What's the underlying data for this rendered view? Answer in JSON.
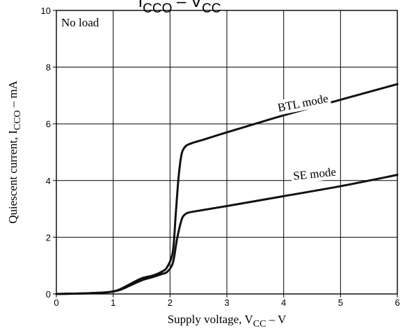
{
  "chart_data": {
    "type": "line",
    "title_parts": [
      {
        "base": "I",
        "sub": "CCO"
      },
      {
        "base": " – V",
        "sub": "CC"
      }
    ],
    "xlabel": {
      "prefix": "Supply voltage, V",
      "sub": "CC",
      "suffix": " – V"
    },
    "ylabel": {
      "prefix": "Quiescent current, I",
      "sub": "CCO",
      "suffix": " – mA"
    },
    "xlim": [
      0,
      6
    ],
    "ylim": [
      0,
      10
    ],
    "xticks": [
      0,
      1,
      2,
      3,
      4,
      5,
      6
    ],
    "yticks": [
      0,
      2,
      4,
      6,
      8,
      10
    ],
    "grid": true,
    "annotations": [
      {
        "text": "No load"
      }
    ],
    "series": [
      {
        "name": "BTL mode",
        "label_anchor": {
          "x": 4.35,
          "y": 6.6
        },
        "label_rotation_deg": -11,
        "x": [
          0,
          0.5,
          0.9,
          1.1,
          1.3,
          1.5,
          1.7,
          1.85,
          1.95,
          2.05,
          2.1,
          2.15,
          2.2,
          2.25,
          2.3,
          2.4,
          2.6,
          3.0,
          4.0,
          5.0,
          6.0
        ],
        "y": [
          0,
          0.02,
          0.06,
          0.15,
          0.35,
          0.55,
          0.65,
          0.78,
          0.95,
          1.5,
          2.8,
          4.1,
          4.9,
          5.15,
          5.25,
          5.33,
          5.45,
          5.7,
          6.3,
          6.85,
          7.4
        ]
      },
      {
        "name": "SE mode",
        "label_anchor": {
          "x": 4.55,
          "y": 4.1
        },
        "label_rotation_deg": -6,
        "x": [
          0,
          0.5,
          0.9,
          1.1,
          1.3,
          1.5,
          1.7,
          1.85,
          1.95,
          2.05,
          2.12,
          2.18,
          2.22,
          2.26,
          2.3,
          2.4,
          3.0,
          4.0,
          5.0,
          6.0
        ],
        "y": [
          0,
          0.02,
          0.06,
          0.13,
          0.3,
          0.48,
          0.6,
          0.7,
          0.78,
          1.1,
          1.9,
          2.45,
          2.7,
          2.8,
          2.85,
          2.9,
          3.1,
          3.45,
          3.8,
          4.2
        ]
      }
    ]
  }
}
